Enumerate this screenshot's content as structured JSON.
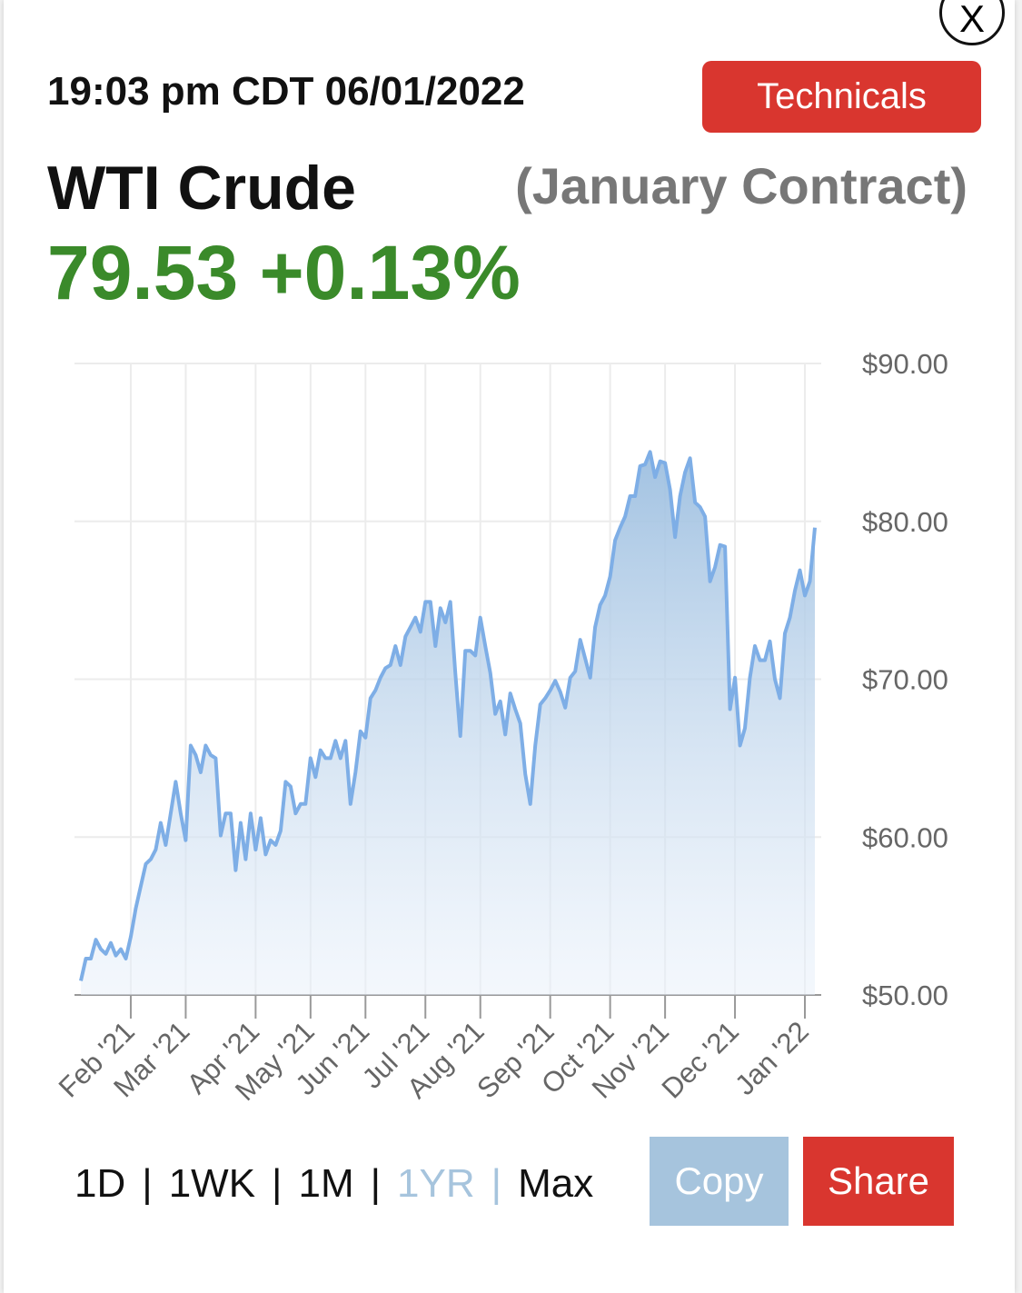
{
  "header": {
    "timestamp": "19:03 pm CDT 06/01/2022",
    "technicals_button": "Technicals",
    "close_button": "X",
    "instrument": "WTI Crude",
    "contract": "(January Contract)",
    "price": "79.53",
    "change": "+0.13%"
  },
  "chart_data": {
    "type": "area",
    "color": "#7eaee6",
    "categories": [
      null,
      null,
      null,
      null,
      null,
      null,
      null,
      null,
      null,
      null,
      "Feb '21",
      null,
      null,
      null,
      null,
      null,
      null,
      null,
      null,
      null,
      null,
      "Mar '21",
      null,
      null,
      null,
      null,
      null,
      null,
      null,
      null,
      null,
      null,
      null,
      null,
      null,
      "Apr '21",
      null,
      null,
      null,
      null,
      null,
      null,
      null,
      null,
      null,
      null,
      "May '21",
      null,
      null,
      null,
      null,
      null,
      null,
      null,
      null,
      null,
      null,
      "Jun '21",
      null,
      null,
      null,
      null,
      null,
      null,
      null,
      null,
      null,
      null,
      null,
      "Jul '21",
      null,
      null,
      null,
      null,
      null,
      null,
      null,
      null,
      null,
      null,
      "Aug '21",
      null,
      null,
      null,
      null,
      null,
      null,
      null,
      null,
      null,
      null,
      null,
      null,
      null,
      "Sep '21",
      null,
      null,
      null,
      null,
      null,
      null,
      null,
      null,
      null,
      null,
      null,
      "Oct '21",
      null,
      null,
      null,
      null,
      null,
      null,
      null,
      null,
      null,
      null,
      "Nov '21",
      null,
      null,
      null,
      null,
      null,
      null,
      null,
      null,
      null,
      null,
      null,
      null,
      null,
      "Dec '21",
      null,
      null,
      null,
      null,
      null,
      null,
      null,
      null,
      null,
      null,
      null,
      null,
      null,
      "Jan '22",
      null,
      null
    ],
    "values": [
      50.9,
      52.3,
      52.3,
      53.5,
      52.9,
      52.6,
      53.3,
      52.5,
      52.9,
      52.3,
      53.7,
      55.5,
      56.9,
      58.3,
      58.6,
      59.2,
      60.9,
      59.5,
      61.5,
      63.5,
      61.5,
      59.8,
      65.8,
      65.2,
      64.1,
      65.8,
      65.2,
      65.0,
      60.1,
      61.5,
      61.5,
      57.9,
      60.9,
      58.6,
      61.5,
      59.2,
      61.2,
      58.9,
      59.8,
      59.5,
      60.4,
      63.5,
      63.2,
      61.5,
      62.1,
      62.1,
      65.0,
      63.8,
      65.5,
      65.0,
      65.0,
      66.1,
      65.0,
      66.1,
      62.1,
      64.1,
      66.7,
      66.3,
      68.8,
      69.3,
      70.1,
      70.7,
      70.9,
      72.1,
      70.9,
      72.7,
      73.3,
      73.9,
      73.0,
      74.9,
      74.9,
      72.1,
      74.5,
      73.6,
      74.9,
      70.4,
      66.4,
      71.8,
      71.8,
      71.5,
      73.9,
      72.1,
      70.4,
      67.8,
      68.6,
      66.5,
      69.1,
      68.1,
      67.2,
      64.0,
      62.1,
      65.8,
      68.4,
      68.8,
      69.3,
      69.9,
      69.2,
      68.2,
      70.1,
      70.5,
      72.5,
      71.3,
      70.1,
      73.3,
      74.7,
      75.3,
      76.5,
      78.8,
      79.6,
      80.3,
      81.6,
      81.6,
      83.5,
      83.6,
      84.4,
      82.8,
      83.8,
      83.7,
      82.0,
      79.0,
      81.6,
      83.1,
      84.0,
      81.2,
      80.9,
      80.3,
      76.2,
      77.1,
      78.5,
      78.4,
      68.1,
      70.1,
      65.8,
      66.9,
      70.1,
      72.1,
      71.2,
      71.2,
      72.4,
      70.0,
      68.8,
      72.9,
      73.9,
      75.6,
      76.9,
      75.3,
      76.2,
      79.6
    ],
    "ylim": [
      50,
      90
    ],
    "yticks": [
      {
        "value": 50,
        "label": "$50.00"
      },
      {
        "value": 60,
        "label": "$60.00"
      },
      {
        "value": 70,
        "label": "$70.00"
      },
      {
        "value": 80,
        "label": "$80.00"
      },
      {
        "value": 90,
        "label": "$90.00"
      }
    ],
    "grid": true
  },
  "controls": {
    "ranges": [
      "1D",
      "1WK",
      "1M",
      "1YR",
      "Max"
    ],
    "separator": "|",
    "active_range": "1YR",
    "copy_button": "Copy",
    "share_button": "Share"
  }
}
